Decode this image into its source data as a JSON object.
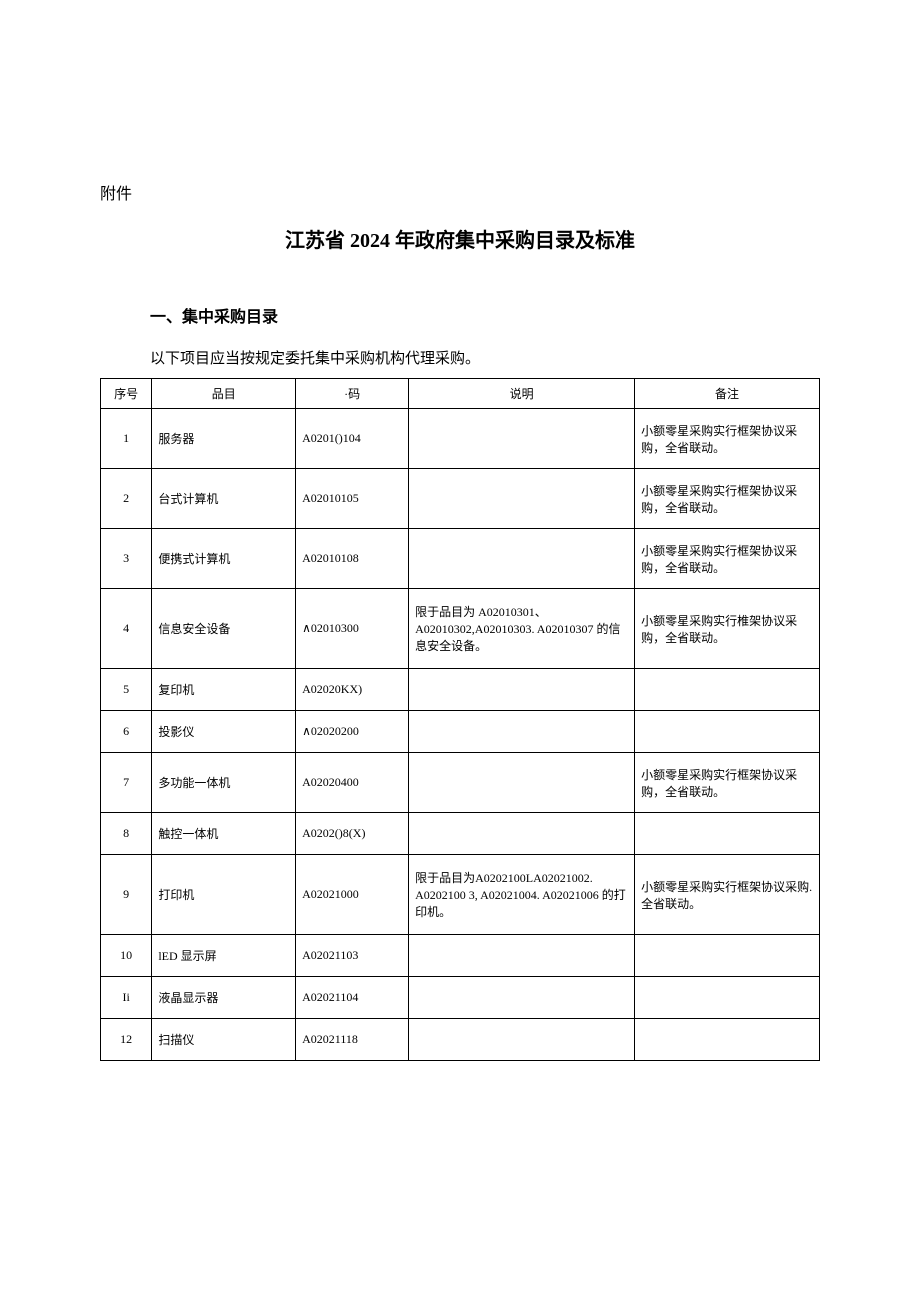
{
  "attachment_label": "附件",
  "title": "江苏省 2024 年政府集中采购目录及标准",
  "section1": {
    "heading": "一、集中采购目录",
    "text": "以下项目应当按规定委托集中采购机构代理采购。"
  },
  "table": {
    "columns": [
      "序号",
      "品目",
      "·码",
      "说明",
      "备注"
    ],
    "rows": [
      {
        "seq": "1",
        "item": "服务器",
        "code": "A0201()104",
        "desc": "",
        "remark": "小额零星采购实行框架协议采购，全省联动。",
        "height": "tall"
      },
      {
        "seq": "2",
        "item": "台式计算机",
        "code": "A02010105",
        "desc": "",
        "remark": "小额零星采购实行框架协议采购，全省联动。",
        "height": "tall"
      },
      {
        "seq": "3",
        "item": "便携式计算机",
        "code": "A02010108",
        "desc": "",
        "remark": "小额零星采购实行框架协议采购，全省联动。",
        "height": "tall"
      },
      {
        "seq": "4",
        "item": "信息安全设备",
        "code": "∧02010300",
        "desc": "限于品目为 A02010301、A02010302,A02010303. A02010307 的信息安全设备。",
        "remark": "小额零星采购实行椎架协议采购，全省联动。",
        "height": "tall2"
      },
      {
        "seq": "5",
        "item": "复印机",
        "code": "A02020KX)",
        "desc": "",
        "remark": "",
        "height": "med"
      },
      {
        "seq": "6",
        "item": "投影仪",
        "code": "∧02020200",
        "desc": "",
        "remark": "",
        "height": "med"
      },
      {
        "seq": "7",
        "item": "多功能一体机",
        "code": "A02020400",
        "desc": "",
        "remark": "小额零星采购实行框架协议采购，全省联动。",
        "height": "tall"
      },
      {
        "seq": "8",
        "item": "触控一体机",
        "code": "A0202()8(X)",
        "desc": "",
        "remark": "",
        "height": "med"
      },
      {
        "seq": "9",
        "item": "打印机",
        "code": "A02021000",
        "desc": "限于品目为A0202100LA02021002. A0202100 3, A02021004. A02021006 的打印机。",
        "remark": "小额零星采购实行框架协议采购.全省联动。",
        "height": "tall2"
      },
      {
        "seq": "10",
        "item": "lED 显示屏",
        "code": "A02021103",
        "desc": "",
        "remark": "",
        "height": "med"
      },
      {
        "seq": "Ii",
        "item": "液晶显示器",
        "code": "A02021104",
        "desc": "",
        "remark": "",
        "height": "med"
      },
      {
        "seq": "12",
        "item": "扫描仪",
        "code": "A02021118",
        "desc": "",
        "remark": "",
        "height": "med"
      }
    ]
  }
}
